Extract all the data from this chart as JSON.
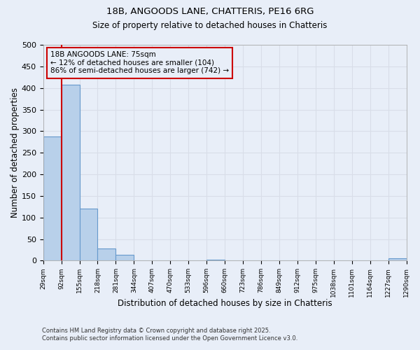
{
  "title1": "18B, ANGOODS LANE, CHATTERIS, PE16 6RG",
  "title2": "Size of property relative to detached houses in Chatteris",
  "xlabel": "Distribution of detached houses by size in Chatteris",
  "ylabel": "Number of detached properties",
  "bar_values": [
    287,
    408,
    121,
    28,
    14,
    0,
    0,
    0,
    0,
    3,
    0,
    0,
    0,
    0,
    0,
    0,
    0,
    0,
    0,
    5
  ],
  "categories": [
    "29sqm",
    "92sqm",
    "155sqm",
    "218sqm",
    "281sqm",
    "344sqm",
    "407sqm",
    "470sqm",
    "533sqm",
    "596sqm",
    "660sqm",
    "723sqm",
    "786sqm",
    "849sqm",
    "912sqm",
    "975sqm",
    "1038sqm",
    "1101sqm",
    "1164sqm",
    "1227sqm",
    "1290sqm"
  ],
  "bar_color": "#b8d0ea",
  "bar_edge_color": "#6699cc",
  "bg_color": "#e8eef8",
  "grid_color": "#d8dde8",
  "annotation_text": "18B ANGOODS LANE: 75sqm\n← 12% of detached houses are smaller (104)\n86% of semi-detached houses are larger (742) →",
  "annotation_box_edgecolor": "#cc0000",
  "red_line_color": "#cc0000",
  "ylim": [
    0,
    500
  ],
  "yticks": [
    0,
    50,
    100,
    150,
    200,
    250,
    300,
    350,
    400,
    450,
    500
  ],
  "property_line_x": 1.0,
  "footnote_line1": "Contains HM Land Registry data © Crown copyright and database right 2025.",
  "footnote_line2": "Contains public sector information licensed under the Open Government Licence v3.0."
}
